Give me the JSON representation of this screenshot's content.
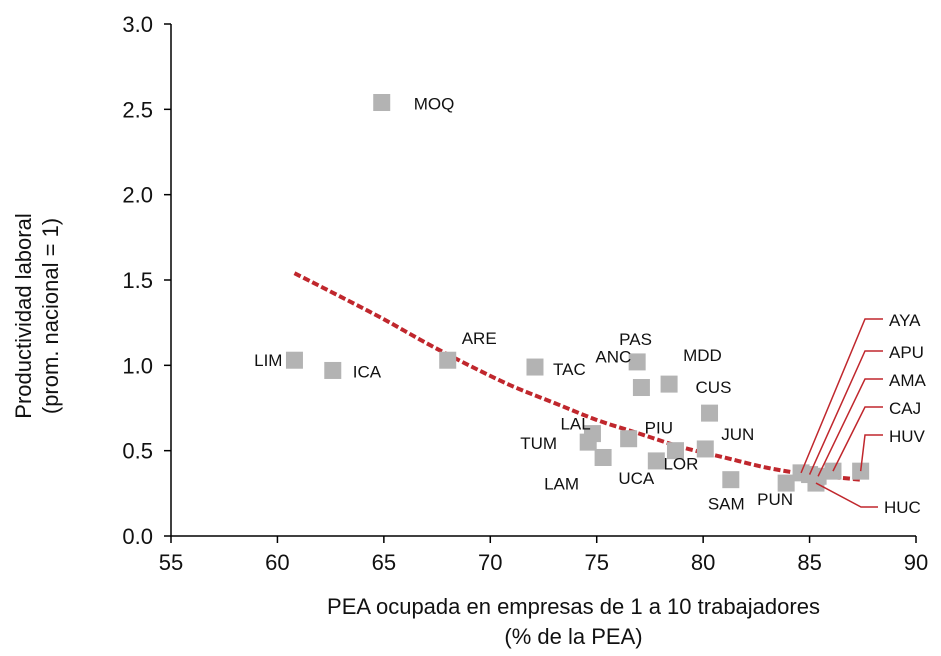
{
  "chart_data": {
    "type": "scatter",
    "title": "",
    "xlabel_lines": [
      "PEA ocupada en empresas de 1 a 10 trabajadores",
      "(% de la PEA)"
    ],
    "ylabel_lines": [
      "Productividad laboral",
      "(prom. nacional = 1)"
    ],
    "xlim": [
      55,
      90
    ],
    "ylim": [
      0.0,
      3.0
    ],
    "x_ticks": [
      55,
      60,
      65,
      70,
      75,
      80,
      85,
      90
    ],
    "y_ticks": [
      0.0,
      0.5,
      1.0,
      1.5,
      2.0,
      2.5,
      3.0
    ],
    "x_tick_labels": [
      "55",
      "60",
      "65",
      "70",
      "75",
      "80",
      "85",
      "90"
    ],
    "y_tick_labels": [
      "0.0",
      "0.5",
      "1.0",
      "1.5",
      "2.0",
      "2.5",
      "3.0"
    ],
    "grid": false,
    "marker_color": "#b3b3b3",
    "trend_color": "#c0272d",
    "points": [
      {
        "label": "MOQ",
        "x": 64.9,
        "y": 2.54
      },
      {
        "label": "LIM",
        "x": 60.8,
        "y": 1.03
      },
      {
        "label": "ICA",
        "x": 62.6,
        "y": 0.97
      },
      {
        "label": "ARE",
        "x": 68.0,
        "y": 1.03
      },
      {
        "label": "TAC",
        "x": 72.1,
        "y": 0.99
      },
      {
        "label": "PAS",
        "x": 76.9,
        "y": 1.02
      },
      {
        "label": "MDD",
        "x": 78.4,
        "y": 0.89
      },
      {
        "label": "ANC",
        "x": 77.1,
        "y": 0.87
      },
      {
        "label": "CUS",
        "x": 80.3,
        "y": 0.72
      },
      {
        "label": "LAL",
        "x": 74.8,
        "y": 0.6
      },
      {
        "label": "TUM",
        "x": 74.6,
        "y": 0.55
      },
      {
        "label": "PIU",
        "x": 76.5,
        "y": 0.57
      },
      {
        "label": "JUN",
        "x": 80.1,
        "y": 0.51
      },
      {
        "label": "LAM",
        "x": 75.3,
        "y": 0.46
      },
      {
        "label": "UCA",
        "x": 77.8,
        "y": 0.44
      },
      {
        "label": "LOR",
        "x": 78.7,
        "y": 0.5
      },
      {
        "label": "SAM",
        "x": 81.3,
        "y": 0.33
      },
      {
        "label": "PUN",
        "x": 83.9,
        "y": 0.31
      },
      {
        "label": "AYA",
        "x": 84.6,
        "y": 0.37
      },
      {
        "label": "APU",
        "x": 85.0,
        "y": 0.36
      },
      {
        "label": "AMA",
        "x": 85.4,
        "y": 0.35
      },
      {
        "label": "CAJ",
        "x": 86.1,
        "y": 0.38
      },
      {
        "label": "HUV",
        "x": 87.4,
        "y": 0.38
      },
      {
        "label": "HUC",
        "x": 85.3,
        "y": 0.31
      }
    ],
    "trendline": {
      "style": "dashed",
      "x": [
        60.8,
        63,
        65,
        67,
        69,
        71,
        73,
        75,
        77,
        79,
        81,
        83,
        85,
        87.4
      ],
      "y": [
        1.54,
        1.4,
        1.27,
        1.13,
        1.0,
        0.88,
        0.78,
        0.68,
        0.6,
        0.52,
        0.46,
        0.4,
        0.36,
        0.33
      ]
    }
  }
}
